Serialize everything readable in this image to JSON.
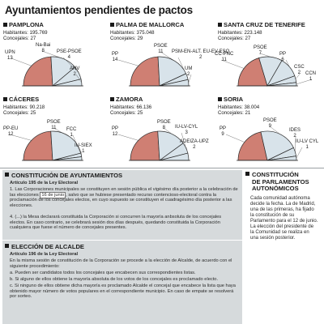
{
  "title": "Ayuntamientos pendientes de pactos",
  "colors": {
    "pink": "#cf7f73",
    "lightblue": "#d8e3ea",
    "stroke": "#2a2a2a",
    "panel": "#d6dadc"
  },
  "cities": [
    {
      "name": "PAMPLONA",
      "habitantes_label": "Habitantes: 195.769",
      "concejales_label": "Concejales: 27",
      "parties": [
        {
          "name": "UPN",
          "seats": 13,
          "color": "pink"
        },
        {
          "name": "Na-Bai",
          "seats": 8,
          "color": "lightblue"
        },
        {
          "name": "PSE-PSOE",
          "seats": 4,
          "color": "lightblue"
        },
        {
          "name": "ANV",
          "seats": 2,
          "color": "lightblue"
        }
      ]
    },
    {
      "name": "PALMA DE MALLORCA",
      "habitantes_label": "Habitantes: 375.048",
      "concejales_label": "Concejales: 29",
      "parties": [
        {
          "name": "PP",
          "seats": 14,
          "color": "pink"
        },
        {
          "name": "PSOE",
          "seats": 11,
          "color": "lightblue"
        },
        {
          "name": "PSM-EN-ALT. EU-EV-ESQ",
          "seats": 2,
          "color": "lightblue"
        },
        {
          "name": "UM",
          "seats": 2,
          "color": "lightblue"
        }
      ]
    },
    {
      "name": "SANTA CRUZ DE TENERIFE",
      "habitantes_label": "Habitantes: 223.148",
      "concejales_label": "Concejales: 27",
      "parties": [
        {
          "name": "CC-PNC",
          "seats": 11,
          "color": "pink"
        },
        {
          "name": "PSOE",
          "seats": 7,
          "color": "lightblue"
        },
        {
          "name": "PP",
          "seats": 6,
          "color": "lightblue"
        },
        {
          "name": "CSC",
          "seats": 2,
          "color": "lightblue"
        },
        {
          "name": "CCN",
          "seats": 1,
          "color": "lightblue"
        }
      ]
    },
    {
      "name": "CÁCERES",
      "habitantes_label": "Habitantes: 90.218",
      "concejales_label": "Concejales: 25",
      "parties": [
        {
          "name": "PP-EU",
          "seats": 12,
          "color": "pink"
        },
        {
          "name": "PSOE",
          "seats": 11,
          "color": "lightblue"
        },
        {
          "name": "FCC",
          "seats": 1,
          "color": "lightblue"
        },
        {
          "name": "IU-SIEX",
          "seats": 1,
          "color": "lightblue"
        }
      ]
    },
    {
      "name": "ZAMORA",
      "habitantes_label": "Habitantes: 66.136",
      "concejales_label": "Concejales: 25",
      "parties": [
        {
          "name": "PP",
          "seats": 12,
          "color": "pink"
        },
        {
          "name": "PSOE",
          "seats": 8,
          "color": "lightblue"
        },
        {
          "name": "IU-LV-CYL",
          "seats": 3,
          "color": "lightblue"
        },
        {
          "name": "ADEIZA-UPZ",
          "seats": 2,
          "color": "lightblue"
        }
      ]
    },
    {
      "name": "SORIA",
      "habitantes_label": "Habitantes: 38.004",
      "concejales_label": "Concejales: 21",
      "parties": [
        {
          "name": "PP",
          "seats": 9,
          "color": "pink"
        },
        {
          "name": "PSOE",
          "seats": 9,
          "color": "lightblue"
        },
        {
          "name": "IDES",
          "seats": 2,
          "color": "lightblue"
        },
        {
          "name": "IU-LV CYL",
          "seats": 1,
          "color": "lightblue"
        }
      ]
    }
  ],
  "sections": {
    "constitucion": {
      "heading": "CONSTITUCIÓN DE AYUNTAMIENTOS",
      "article": "Artículo 195 de la Ley Electoral",
      "p1_before": "1. Las Corporaciones municipales se constituyen en sesión pública el vigésimo día posterior a la celebración de las elecciones ",
      "p1_highlight": "16 de junio",
      "p1_after": ", salvo que se hubiese presentado recurso contencioso-electoral contra la proclamación de los concejales electos, en cuyo supuesto se constituyen el cuadragésimo día posterior a las elecciones.",
      "p2": "4. (...) la Mesa declarará constituida la Corporación si concurren la mayoría anbsoluta de los concejales electos. En caso contrario, se celebrará sesión dos días después, quedando constituida la Corporación cualquiera que fuese el número de concejales presentes."
    },
    "eleccion": {
      "heading": "ELECCIÓN DE ALCALDE",
      "article": "Artículo 196 de la Ley Electoral",
      "intro": "En la misma sesión de constitución de la Corporación se procede a la elección de Alcalde, de acuerdo con el siguiente procedimiento:",
      "a": "a. Pueden ser candidatos todos los concejales que encabecen sus correspondientes listas.",
      "b": "b. Si alguno de ellos obtiene la mayoría absoluta de los votos de los concejales es proclamado electo.",
      "c": "c. Si ninguno de ellos obtiene dicha mayoría es proclamado Alcalde el concejal que encabece la lista que haya obtenido mayor número de votos populares en el correspondiente municipio. En caso de empate se resolverá por sorteo."
    },
    "parlamentos": {
      "heading_line1": "CONSTITUCIÓN",
      "heading_line2": "DE PARLAMENTOS",
      "heading_line3": "AUTONÓMICOS",
      "text": "Cada comunidad autónoma decide la fecha. La de Madrid, una de las primeras, ha fijado la constitución de su Parlamento para el 12 de junio. La elección del presidente de la Comunidad se realiza en una sesión posterior."
    }
  }
}
